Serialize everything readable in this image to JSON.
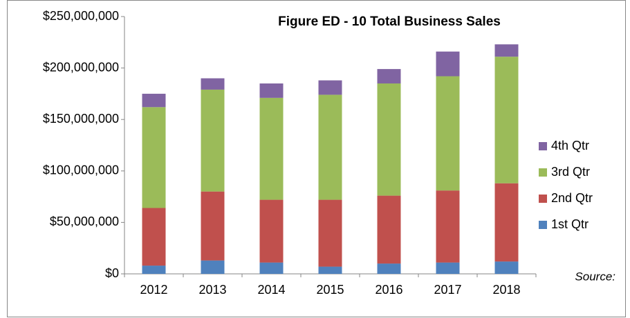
{
  "chart_data": {
    "type": "bar",
    "stacked": true,
    "title": "Figure ED - 10  Total Business Sales",
    "source": "Source:",
    "categories": [
      "2012",
      "2013",
      "2014",
      "2015",
      "2016",
      "2017",
      "2018"
    ],
    "series": [
      {
        "name": "1st Qtr",
        "color": "#4f81bd",
        "values": [
          8000000,
          13000000,
          11000000,
          7000000,
          10000000,
          11000000,
          12000000
        ]
      },
      {
        "name": "2nd Qtr",
        "color": "#c0504d",
        "values": [
          56000000,
          67000000,
          61000000,
          65000000,
          66000000,
          70000000,
          76000000
        ]
      },
      {
        "name": "3rd Qtr",
        "color": "#9bbb59",
        "values": [
          98000000,
          99000000,
          99000000,
          102000000,
          109000000,
          111000000,
          123000000
        ]
      },
      {
        "name": "4th Qtr",
        "color": "#8064a2",
        "values": [
          13000000,
          11000000,
          14000000,
          14000000,
          14000000,
          24000000,
          12000000
        ]
      }
    ],
    "ylim": [
      0,
      250000000
    ],
    "yticks": [
      {
        "value": 0,
        "label": "$0"
      },
      {
        "value": 50000000,
        "label": "$50,000,000"
      },
      {
        "value": 100000000,
        "label": "$100,000,000"
      },
      {
        "value": 150000000,
        "label": "$150,000,000"
      },
      {
        "value": 200000000,
        "label": "$200,000,000"
      },
      {
        "value": 250000000,
        "label": "$250,000,000"
      }
    ],
    "legend": "right"
  }
}
